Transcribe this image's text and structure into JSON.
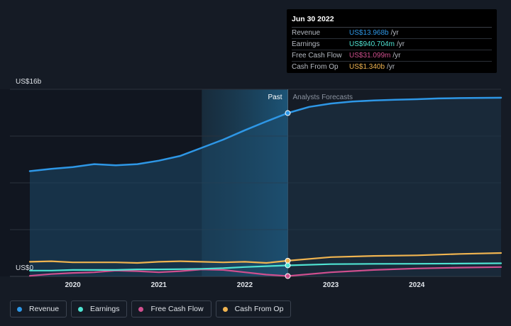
{
  "chart_data": {
    "type": "line",
    "ylabel_top": "US$16b",
    "ylabel_bottom": "US$0",
    "ylim": [
      0,
      16
    ],
    "xlim": [
      2019.5,
      2024.98
    ],
    "x_ticks": [
      {
        "x": 2020.0,
        "label": "2020"
      },
      {
        "x": 2021.0,
        "label": "2021"
      },
      {
        "x": 2022.0,
        "label": "2022"
      },
      {
        "x": 2023.0,
        "label": "2023"
      },
      {
        "x": 2024.0,
        "label": "2024"
      }
    ],
    "divider_x": 2022.5,
    "highlight_start_x": 2021.5,
    "past_label": "Past",
    "forecast_label": "Analysts Forecasts",
    "series": [
      {
        "name": "Revenue",
        "color": "#2e97e6",
        "points": [
          [
            2019.5,
            9.0
          ],
          [
            2019.75,
            9.2
          ],
          [
            2020.0,
            9.35
          ],
          [
            2020.25,
            9.6
          ],
          [
            2020.5,
            9.5
          ],
          [
            2020.75,
            9.6
          ],
          [
            2021.0,
            9.9
          ],
          [
            2021.25,
            10.3
          ],
          [
            2021.5,
            11.0
          ],
          [
            2021.75,
            11.7
          ],
          [
            2022.0,
            12.5
          ],
          [
            2022.25,
            13.25
          ],
          [
            2022.5,
            13.968
          ],
          [
            2022.75,
            14.5
          ],
          [
            2023.0,
            14.78
          ],
          [
            2023.25,
            14.95
          ],
          [
            2023.5,
            15.05
          ],
          [
            2023.75,
            15.1
          ],
          [
            2024.0,
            15.15
          ],
          [
            2024.25,
            15.22
          ],
          [
            2024.5,
            15.25
          ],
          [
            2024.98,
            15.28
          ]
        ]
      },
      {
        "name": "Earnings",
        "color": "#4fe3d2",
        "points": [
          [
            2019.5,
            0.5
          ],
          [
            2019.75,
            0.5
          ],
          [
            2020.0,
            0.55
          ],
          [
            2020.25,
            0.55
          ],
          [
            2020.5,
            0.55
          ],
          [
            2020.75,
            0.6
          ],
          [
            2021.0,
            0.6
          ],
          [
            2021.25,
            0.62
          ],
          [
            2021.5,
            0.65
          ],
          [
            2021.75,
            0.7
          ],
          [
            2022.0,
            0.8
          ],
          [
            2022.25,
            0.87
          ],
          [
            2022.5,
            0.9407
          ],
          [
            2023.0,
            1.05
          ],
          [
            2023.5,
            1.07
          ],
          [
            2024.0,
            1.08
          ],
          [
            2024.5,
            1.1
          ],
          [
            2024.98,
            1.12
          ]
        ]
      },
      {
        "name": "Free Cash Flow",
        "color": "#d04f8e",
        "points": [
          [
            2019.5,
            0.05
          ],
          [
            2019.75,
            0.2
          ],
          [
            2020.0,
            0.3
          ],
          [
            2020.25,
            0.35
          ],
          [
            2020.5,
            0.5
          ],
          [
            2020.75,
            0.45
          ],
          [
            2021.0,
            0.35
          ],
          [
            2021.25,
            0.45
          ],
          [
            2021.5,
            0.6
          ],
          [
            2021.75,
            0.55
          ],
          [
            2022.0,
            0.35
          ],
          [
            2022.25,
            0.15
          ],
          [
            2022.5,
            0.0311
          ],
          [
            2023.0,
            0.35
          ],
          [
            2023.5,
            0.55
          ],
          [
            2024.0,
            0.68
          ],
          [
            2024.5,
            0.75
          ],
          [
            2024.98,
            0.8
          ]
        ]
      },
      {
        "name": "Cash From Op",
        "color": "#f0b450",
        "points": [
          [
            2019.5,
            1.25
          ],
          [
            2019.75,
            1.3
          ],
          [
            2020.0,
            1.2
          ],
          [
            2020.25,
            1.2
          ],
          [
            2020.5,
            1.2
          ],
          [
            2020.75,
            1.15
          ],
          [
            2021.0,
            1.25
          ],
          [
            2021.25,
            1.3
          ],
          [
            2021.5,
            1.25
          ],
          [
            2021.75,
            1.2
          ],
          [
            2022.0,
            1.25
          ],
          [
            2022.25,
            1.15
          ],
          [
            2022.5,
            1.34
          ],
          [
            2023.0,
            1.65
          ],
          [
            2023.5,
            1.75
          ],
          [
            2024.0,
            1.8
          ],
          [
            2024.5,
            1.92
          ],
          [
            2024.98,
            2.0
          ]
        ]
      }
    ]
  },
  "tooltip": {
    "date": "Jun 30 2022",
    "unit": "/yr",
    "rows": [
      {
        "label": "Revenue",
        "value": "US$13.968b",
        "color": "#2e97e6"
      },
      {
        "label": "Earnings",
        "value": "US$940.704m",
        "color": "#4fe3d2"
      },
      {
        "label": "Free Cash Flow",
        "value": "US$31.099m",
        "color": "#d04f8e"
      },
      {
        "label": "Cash From Op",
        "value": "US$1.340b",
        "color": "#f0b450"
      }
    ]
  },
  "legend": [
    {
      "label": "Revenue",
      "color": "#2e97e6"
    },
    {
      "label": "Earnings",
      "color": "#4fe3d2"
    },
    {
      "label": "Free Cash Flow",
      "color": "#d04f8e"
    },
    {
      "label": "Cash From Op",
      "color": "#f0b450"
    }
  ]
}
